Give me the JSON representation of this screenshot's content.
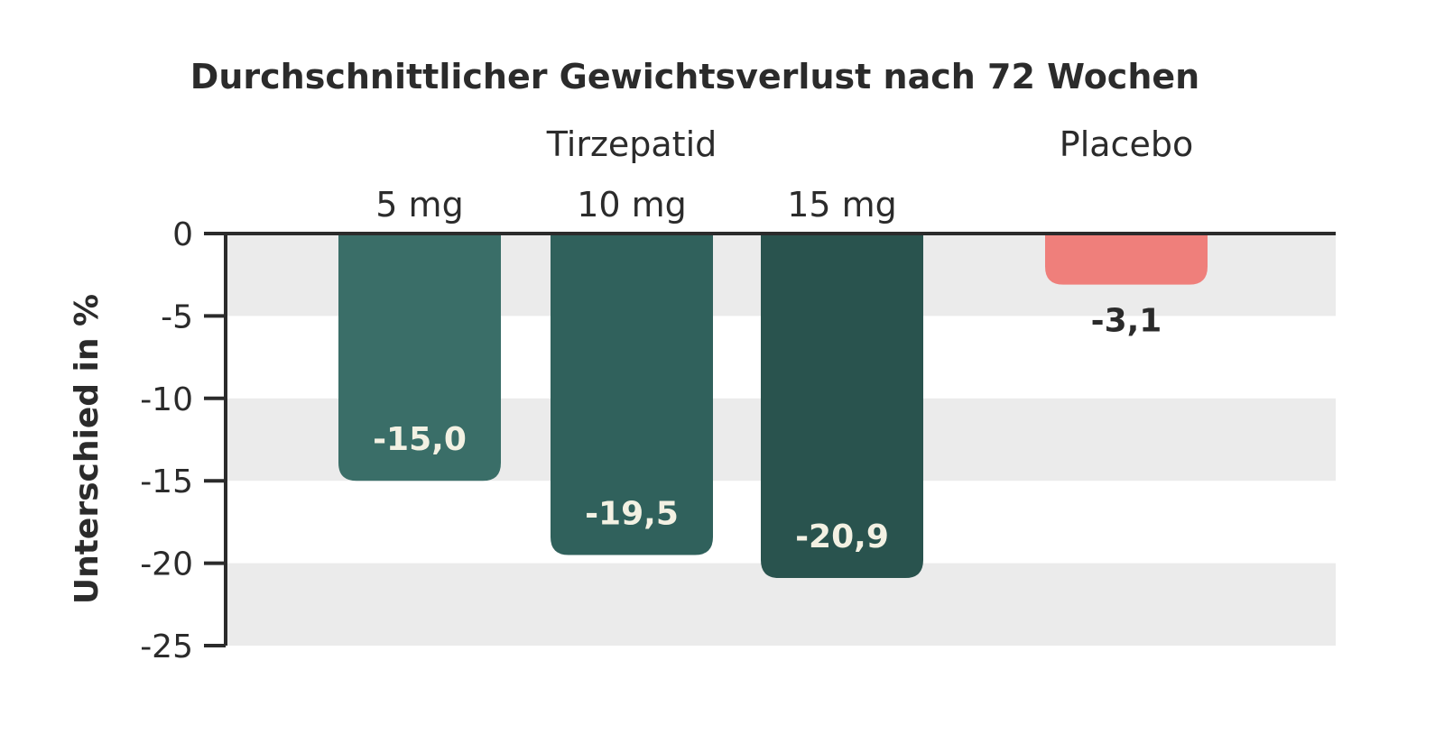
{
  "chart_data": {
    "type": "bar",
    "title": "Durchschnittlicher Gewichtsverlust nach 72 Wochen",
    "ylabel": "Unterschied in %",
    "xlabel": "",
    "ylim": [
      -25,
      0
    ],
    "yticks": [
      "0",
      "-5",
      "-10",
      "-15",
      "-20",
      "-25"
    ],
    "grid": "alternating horizontal bands",
    "groups": [
      {
        "name": "Tirzepatid",
        "categories": [
          "5 mg",
          "10 mg",
          "15 mg"
        ]
      },
      {
        "name": "Placebo",
        "categories": [
          ""
        ]
      }
    ],
    "categories": [
      "5 mg",
      "10 mg",
      "15 mg",
      ""
    ],
    "values": [
      -15.0,
      -19.5,
      -20.9,
      -3.1
    ],
    "value_labels": [
      "-15,0",
      "-19,5",
      "-20,9",
      "-3,1"
    ],
    "colors": [
      "#3a6e68",
      "#30615c",
      "#29534e",
      "#ef7f7b"
    ],
    "label_colors": [
      "#f3f1e3",
      "#f3f1e3",
      "#f3f1e3",
      "#2b2b2b"
    ]
  }
}
